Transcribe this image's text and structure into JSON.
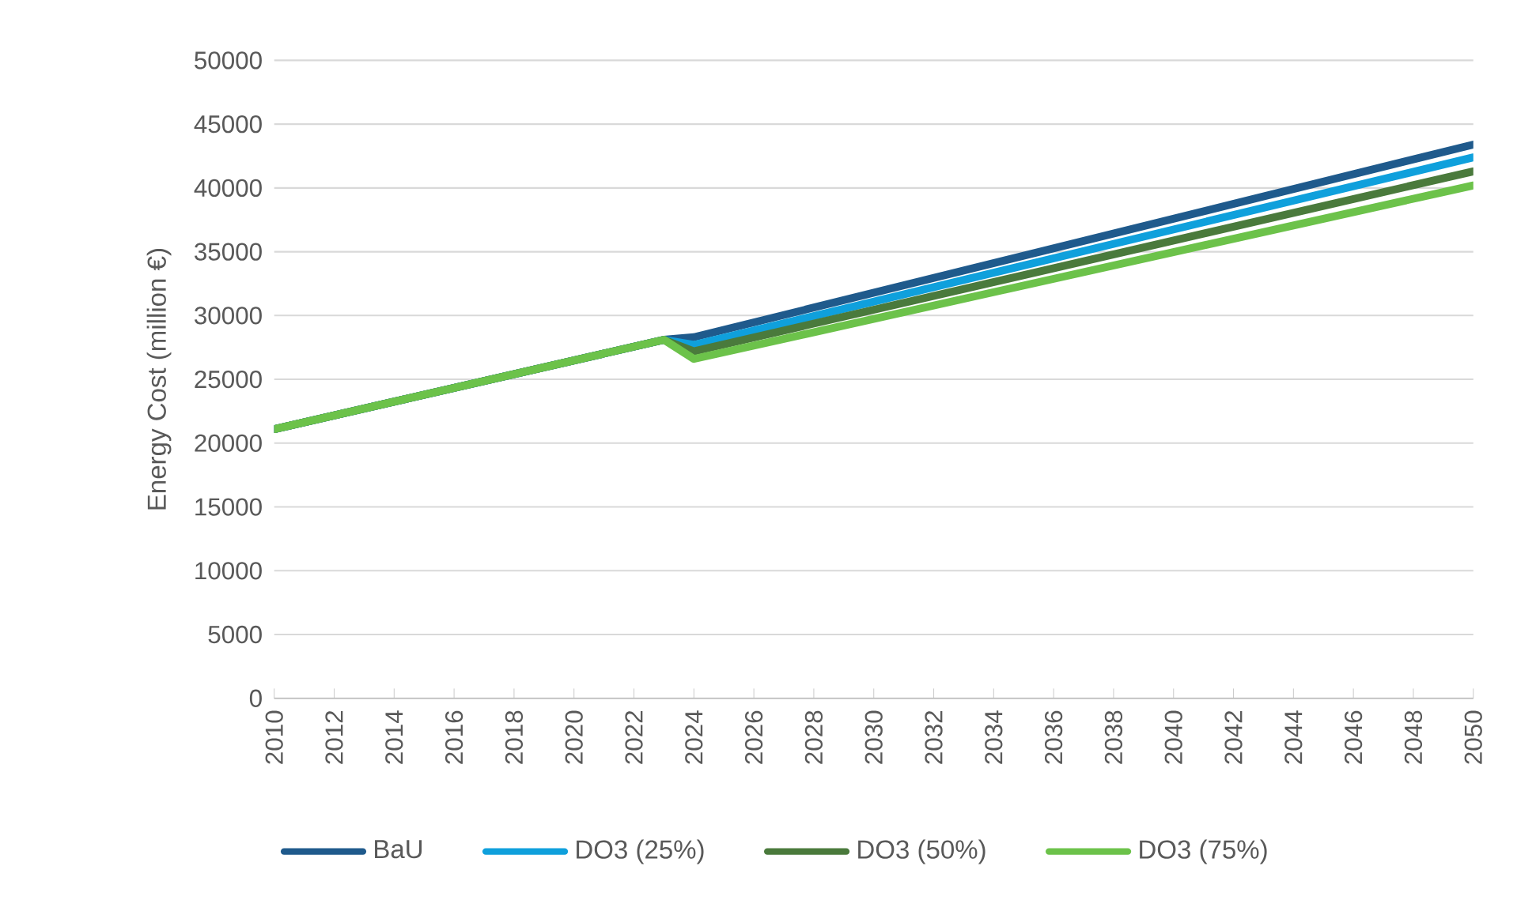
{
  "chart_data": {
    "type": "line",
    "ylabel": "Energy Cost (million €)",
    "xlim": [
      2010,
      2050
    ],
    "xticks": [
      2010,
      2012,
      2014,
      2016,
      2018,
      2020,
      2022,
      2024,
      2026,
      2028,
      2030,
      2032,
      2034,
      2036,
      2038,
      2040,
      2042,
      2044,
      2046,
      2048,
      2050
    ],
    "ylim": [
      0,
      50000
    ],
    "yticks": [
      0,
      5000,
      10000,
      15000,
      20000,
      25000,
      30000,
      35000,
      40000,
      45000,
      50000
    ],
    "grid": "y",
    "legend": "bottom",
    "marker": "none",
    "line_style": "solid",
    "series": [
      {
        "name": "BaU",
        "color": "#1f5a8c",
        "x": [
          2010,
          2023,
          2024,
          2050
        ],
        "values": [
          21100,
          28100,
          28300,
          43400
        ]
      },
      {
        "name": "DO3 (25%)",
        "color": "#0fa0dc",
        "x": [
          2010,
          2023,
          2024,
          2050
        ],
        "values": [
          21100,
          28100,
          27700,
          42400
        ]
      },
      {
        "name": "DO3 (50%)",
        "color": "#4a7a3c",
        "x": [
          2010,
          2023,
          2024,
          2050
        ],
        "values": [
          21100,
          28100,
          27200,
          41300
        ]
      },
      {
        "name": "DO3 (75%)",
        "color": "#6cc24a",
        "x": [
          2010,
          2023,
          2024,
          2050
        ],
        "values": [
          21100,
          28100,
          26600,
          40200
        ]
      }
    ]
  }
}
